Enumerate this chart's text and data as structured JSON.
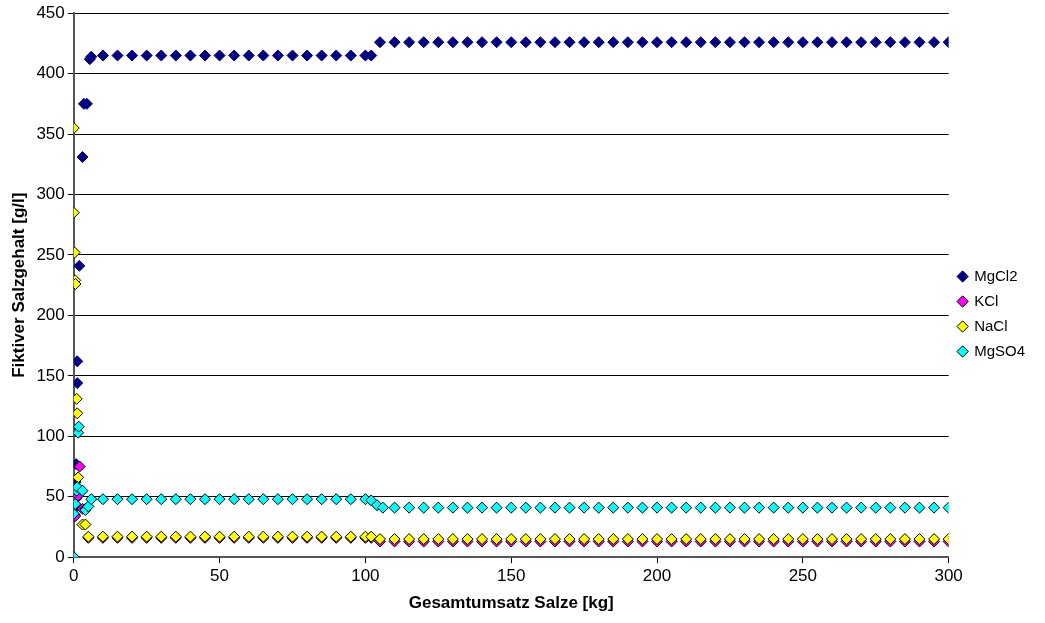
{
  "chart_data": {
    "type": "scatter",
    "xlabel": "Gesamtumsatz Salze [kg]",
    "ylabel": "Fiktiver Salzgehalt [g/l]",
    "xlim": [
      0,
      300
    ],
    "xticks": [
      0,
      50,
      100,
      150,
      200,
      250,
      300
    ],
    "ylim": [
      0,
      450
    ],
    "yticks": [
      0,
      50,
      100,
      150,
      200,
      250,
      300,
      350,
      400,
      450
    ],
    "grid": "y",
    "legend": "right",
    "marker": "diamond",
    "series": [
      {
        "name": "MgCl2",
        "color": "#000080",
        "x": [
          0,
          0.3,
          0.5,
          0.6,
          0.8,
          1.2,
          1.2,
          1.9,
          3,
          3.5,
          4.5,
          5.5,
          6,
          10,
          15,
          20,
          25,
          30,
          35,
          40,
          45,
          50,
          55,
          60,
          65,
          70,
          75,
          80,
          85,
          90,
          95,
          100,
          102,
          105,
          110,
          115,
          120,
          125,
          130,
          135,
          140,
          145,
          150,
          155,
          160,
          165,
          170,
          175,
          180,
          185,
          190,
          195,
          200,
          205,
          210,
          215,
          220,
          225,
          230,
          235,
          240,
          245,
          250,
          255,
          260,
          265,
          270,
          275,
          280,
          285,
          290,
          295,
          300
        ],
        "values": [
          0,
          35,
          41,
          62,
          77,
          144,
          162,
          241,
          331,
          375,
          375,
          412,
          414,
          415,
          415,
          415,
          415,
          415,
          415,
          415,
          415,
          415,
          415,
          415,
          415,
          415,
          415,
          415,
          415,
          415,
          415,
          415,
          415,
          426,
          426,
          426,
          426,
          426,
          426,
          426,
          426,
          426,
          426,
          426,
          426,
          426,
          426,
          426,
          426,
          426,
          426,
          426,
          426,
          426,
          426,
          426,
          426,
          426,
          426,
          426,
          426,
          426,
          426,
          426,
          426,
          426,
          426,
          426,
          426,
          426,
          426,
          426,
          426
        ]
      },
      {
        "name": "KCl",
        "color": "#ff00ff",
        "x": [
          0,
          0.5,
          1,
          1.5,
          2,
          3,
          4,
          5,
          10,
          15,
          20,
          25,
          30,
          35,
          40,
          45,
          50,
          55,
          60,
          65,
          70,
          75,
          80,
          85,
          90,
          95,
          100,
          102,
          105,
          110,
          115,
          120,
          125,
          130,
          135,
          140,
          145,
          150,
          155,
          160,
          165,
          170,
          175,
          180,
          185,
          190,
          195,
          200,
          205,
          210,
          215,
          220,
          225,
          230,
          235,
          240,
          245,
          250,
          255,
          260,
          265,
          270,
          275,
          280,
          285,
          290,
          295,
          300
        ],
        "values": [
          0,
          34,
          49,
          51,
          75,
          40,
          40,
          16,
          16,
          16,
          16,
          16,
          16,
          16,
          16,
          16,
          16,
          16,
          16,
          16,
          16,
          16,
          16,
          16,
          16,
          16,
          16,
          16,
          13,
          13,
          13,
          13,
          13,
          13,
          13,
          13,
          13,
          13,
          13,
          13,
          13,
          13,
          13,
          13,
          13,
          13,
          13,
          13,
          13,
          13,
          13,
          13,
          13,
          13,
          13,
          13,
          13,
          13,
          13,
          13,
          13,
          13,
          13,
          13,
          13,
          13,
          13,
          13
        ]
      },
      {
        "name": "NaCl",
        "color": "#ffff00",
        "x": [
          0,
          0,
          0.3,
          0.5,
          0.6,
          1,
          1.2,
          1.5,
          3,
          4,
          5,
          10,
          15,
          20,
          25,
          30,
          35,
          40,
          45,
          50,
          55,
          60,
          65,
          70,
          75,
          80,
          85,
          90,
          95,
          100,
          102,
          105,
          110,
          115,
          120,
          125,
          130,
          135,
          140,
          145,
          150,
          155,
          160,
          165,
          170,
          175,
          180,
          185,
          190,
          195,
          200,
          205,
          210,
          215,
          220,
          225,
          230,
          235,
          240,
          245,
          250,
          255,
          260,
          265,
          270,
          275,
          280,
          285,
          290,
          295,
          300
        ],
        "values": [
          355,
          285,
          252,
          229,
          226,
          131,
          119,
          66,
          27,
          27,
          17,
          17,
          17,
          17,
          17,
          17,
          17,
          17,
          17,
          17,
          17,
          17,
          17,
          17,
          17,
          17,
          17,
          17,
          17,
          17,
          17,
          15,
          15,
          15,
          15,
          15,
          15,
          15,
          15,
          15,
          15,
          15,
          15,
          15,
          15,
          15,
          15,
          15,
          15,
          15,
          15,
          15,
          15,
          15,
          15,
          15,
          15,
          15,
          15,
          15,
          15,
          15,
          15,
          15,
          15,
          15,
          15,
          15,
          15,
          15,
          15
        ]
      },
      {
        "name": "MgSO4",
        "color": "#00ffff",
        "x": [
          0,
          0,
          0.5,
          1,
          1.2,
          1.5,
          1.7,
          3,
          4,
          5,
          6,
          10,
          15,
          20,
          25,
          30,
          35,
          40,
          45,
          50,
          55,
          60,
          65,
          70,
          75,
          80,
          85,
          90,
          95,
          100,
          102,
          104,
          106,
          110,
          115,
          120,
          125,
          130,
          135,
          140,
          145,
          150,
          155,
          160,
          165,
          170,
          175,
          180,
          185,
          190,
          195,
          200,
          205,
          210,
          215,
          220,
          225,
          230,
          235,
          240,
          245,
          250,
          255,
          260,
          265,
          270,
          275,
          280,
          285,
          290,
          295,
          300
        ],
        "values": [
          0,
          36,
          44,
          55,
          58,
          103,
          108,
          55,
          39,
          42,
          48,
          48,
          48,
          48,
          48,
          48,
          48,
          48,
          48,
          48,
          48,
          48,
          48,
          48,
          48,
          48,
          48,
          48,
          48,
          48,
          47,
          43,
          41,
          41,
          41,
          41,
          41,
          41,
          41,
          41,
          41,
          41,
          41,
          41,
          41,
          41,
          41,
          41,
          41,
          41,
          41,
          41,
          41,
          41,
          41,
          41,
          41,
          41,
          41,
          41,
          41,
          41,
          41,
          41,
          41,
          41,
          41,
          41,
          41,
          41,
          41,
          41
        ]
      }
    ]
  }
}
